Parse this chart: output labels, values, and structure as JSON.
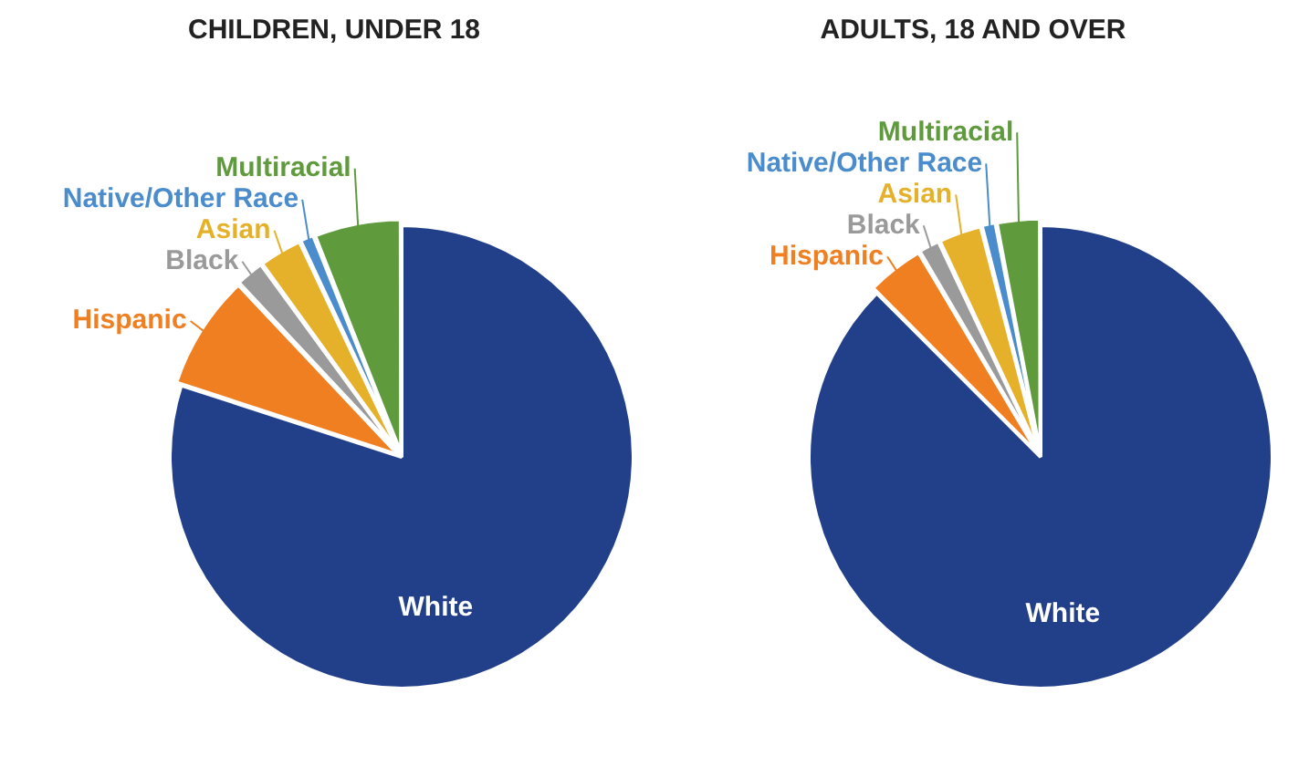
{
  "chart_data": [
    {
      "type": "pie",
      "title": "CHILDREN, UNDER 18",
      "categories": [
        "White",
        "Hispanic",
        "Black",
        "Asian",
        "Native/Other Race",
        "Multiracial"
      ],
      "values": [
        80,
        8,
        2,
        3,
        1,
        6
      ],
      "colors": [
        "#22408a",
        "#f07f22",
        "#9a9a9a",
        "#e5b12b",
        "#4b8ccc",
        "#5f9a3d"
      ]
    },
    {
      "type": "pie",
      "title": "ADULTS, 18 AND OVER",
      "categories": [
        "White",
        "Hispanic",
        "Black",
        "Asian",
        "Native/Other Race",
        "Multiracial"
      ],
      "values": [
        87.5,
        4,
        1.5,
        3,
        1,
        3
      ],
      "colors": [
        "#22408a",
        "#f07f22",
        "#9a9a9a",
        "#e5b12b",
        "#4b8ccc",
        "#5f9a3d"
      ]
    }
  ]
}
